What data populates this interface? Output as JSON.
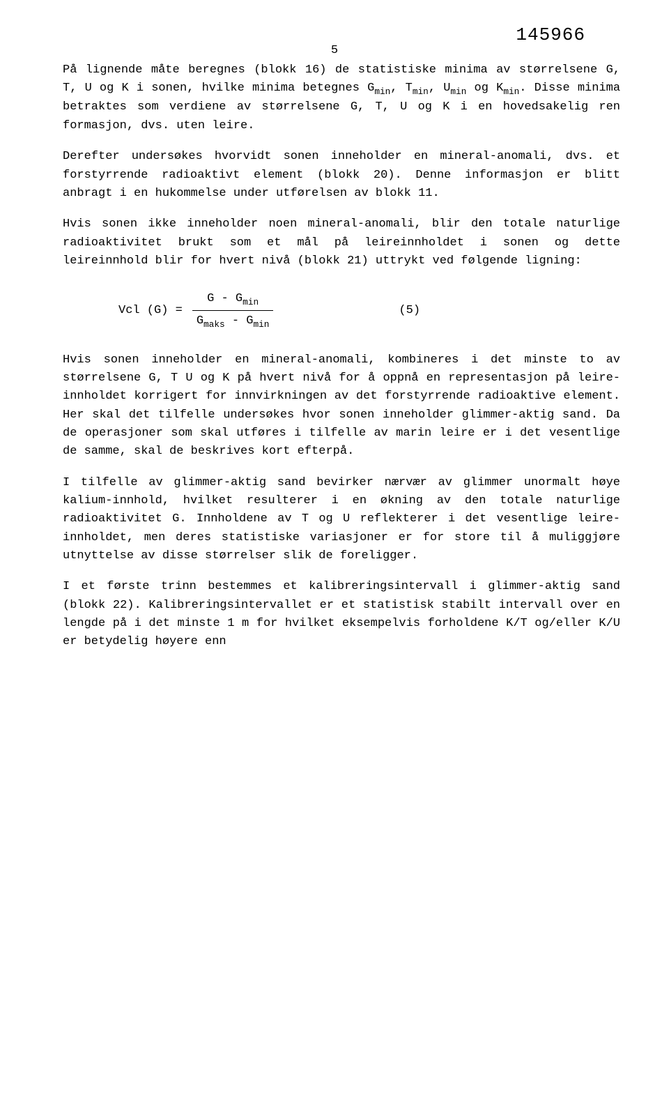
{
  "header": {
    "doc_number": "145966",
    "page_number": "5"
  },
  "paragraphs": {
    "p1_a": "På lignende måte beregnes (blokk 16) de statistiske minima av størrelsene G, T, U og K i sonen, hvilke minima betegnes G",
    "p1_sub1": "min",
    "p1_b": ", T",
    "p1_sub2": "min",
    "p1_c": ", U",
    "p1_sub3": "min",
    "p1_d": " og K",
    "p1_sub4": "min",
    "p1_e": ".  Disse minima betraktes som verdiene av størrelsene G, T, U og K i en hovedsakelig ren formasjon, dvs. uten leire.",
    "p2": "Derefter undersøkes hvorvidt sonen inneholder en mineral-anomali, dvs. et forstyrrende radioaktivt element (blokk 20).  Denne informasjon er blitt anbragt i en hukommelse under utførelsen av blokk 11.",
    "p3": "Hvis sonen ikke inneholder noen mineral-anomali, blir den totale naturlige radioaktivitet brukt som et mål på leireinnholdet i sonen og dette leireinnhold blir for hvert nivå (blokk 21) uttrykt ved følgende ligning:",
    "formula": {
      "lhs": "Vcl (G) =",
      "num_a": "G - G",
      "num_sub": "min",
      "den_a": "G",
      "den_sub1": "maks",
      "den_b": " - G",
      "den_sub2": "min",
      "eqnum": "(5)"
    },
    "p4": "Hvis sonen inneholder en mineral-anomali, kombineres i det minste to av størrelsene G, T U og K på hvert nivå for å oppnå en representasjon på leire-innholdet korrigert for innvirkningen av det forstyrrende radioaktive element.  Her skal det tilfelle undersøkes hvor sonen inneholder glimmer-aktig sand.  Da de operasjoner som skal utføres i tilfelle av marin leire er i det vesentlige de samme, skal de beskrives kort efterpå.",
    "p5": "I tilfelle av glimmer-aktig sand bevirker nærvær av glimmer unormalt høye kalium-innhold, hvilket resulterer i en økning av den totale naturlige radioaktivitet G.  Innholdene av T og U reflekterer i det vesentlige leire-innholdet, men deres statistiske variasjoner er for store til å muliggjøre utnyttelse av disse størrelser slik de foreligger.",
    "p6": "I et første trinn bestemmes et kalibreringsintervall i glimmer-aktig sand (blokk 22).  Kalibreringsintervallet er et statistisk stabilt intervall over en lengde på i det minste 1 m for hvilket eksempelvis forholdene K/T og/eller K/U er betydelig høyere enn"
  }
}
